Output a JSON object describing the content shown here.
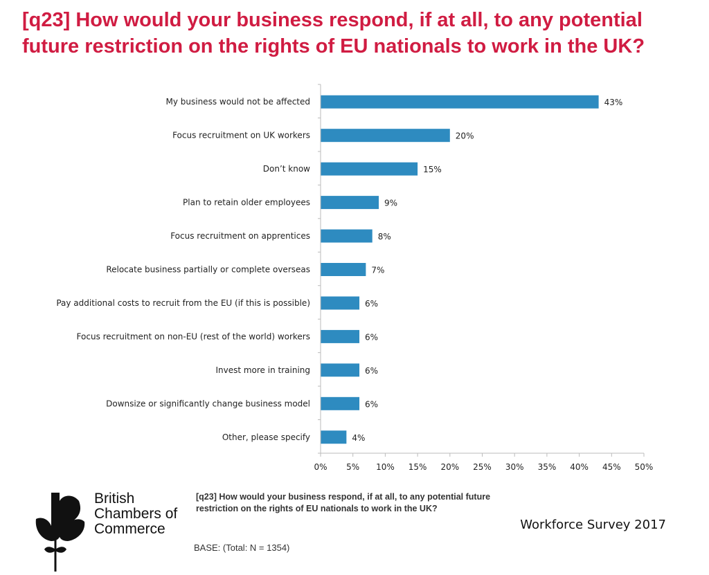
{
  "title": "[q23] How would your business respond, if at all, to any potential future restriction on the rights of EU nationals to work in the UK?",
  "chart_data": {
    "type": "bar",
    "orientation": "horizontal",
    "categories": [
      "My business would not be affected",
      "Focus recruitment on UK workers",
      "Don’t know",
      "Plan to retain older employees",
      "Focus recruitment on apprentices",
      "Relocate business partially or complete overseas",
      "Pay additional costs to recruit from the EU (if this is possible)",
      "Focus recruitment on non-EU (rest of the world) workers",
      "Invest more in training",
      "Downsize or significantly change business model",
      "Other, please specify"
    ],
    "values": [
      43,
      20,
      15,
      9,
      8,
      7,
      6,
      6,
      6,
      6,
      4
    ],
    "data_labels": [
      "43%",
      "20%",
      "15%",
      "9%",
      "8%",
      "7%",
      "6%",
      "6%",
      "6%",
      "6%",
      "4%"
    ],
    "xlim": [
      0,
      50
    ],
    "xticks": [
      0,
      5,
      10,
      15,
      20,
      25,
      30,
      35,
      40,
      45,
      50
    ],
    "xtick_labels": [
      "0%",
      "5%",
      "10%",
      "15%",
      "20%",
      "25%",
      "30%",
      "35%",
      "40%",
      "45%",
      "50%"
    ],
    "bar_color": "#2e8bc0",
    "grid": false,
    "legend": "none"
  },
  "footer": {
    "question": "[q23] How would your business respond, if at all, to any potential future restriction on the rights of EU nationals to work in the UK?",
    "base": "BASE: (Total: N = 1354)",
    "survey": "Workforce Survey 2017"
  },
  "logo": {
    "line1": "British",
    "line2": "Chambers of",
    "line3": "Commerce",
    "icon": "bcc-leaf-logo-icon"
  },
  "colors": {
    "title": "#d01c42",
    "bar": "#2e8bc0"
  }
}
